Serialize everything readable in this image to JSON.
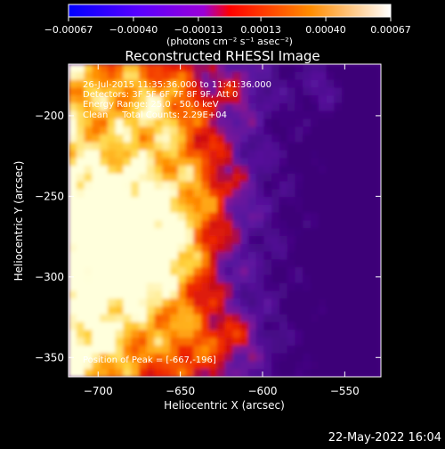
{
  "chart_data": {
    "type": "heatmap",
    "title": "Reconstructed RHESSI Image",
    "xlabel": "Heliocentric X (arcsec)",
    "ylabel": "Heliocentric Y (arcsec)",
    "xlim": [
      -718,
      -528
    ],
    "ylim": [
      -362,
      -168
    ],
    "x_ticks": [
      -700,
      -650,
      -600,
      -550
    ],
    "y_ticks": [
      -200,
      -250,
      -300,
      -350
    ],
    "x_tick_labels": [
      "−700",
      "−650",
      "−600",
      "−550"
    ],
    "y_tick_labels": [
      "−200",
      "−250",
      "−300",
      "−350"
    ],
    "colorbar": {
      "range": [
        -0.00067,
        0.00067
      ],
      "ticks": [
        -0.00067,
        -0.0004,
        -0.00013,
        0.00013,
        0.0004,
        0.00067
      ],
      "tick_labels": [
        "−0.00067",
        "−0.00040",
        "−0.00013",
        "0.00013",
        "0.00040",
        "0.00067"
      ],
      "unit_label": "(photons cm⁻² s⁻¹ asec⁻²)",
      "colors": [
        "#0000ff",
        "#5a00ff",
        "#9b00d8",
        "#ff0000",
        "#ff8c00",
        "#ffffff"
      ]
    },
    "annotations": {
      "time_range": "26-Jul-2015 11:35:36.000 to 11:41:36.000",
      "detectors": "Detectors: 3F 5F 6F 7F 8F 9F, Att 0",
      "energy": "Energy Range: 25.0 - 50.0 keV",
      "clean": "Clean     Total Counts: 2.29E+04",
      "peak": "Position of Peak = [-667,-196]"
    },
    "peak": [
      -667,
      -196
    ],
    "footer_date": "22-May-2022 16:04"
  }
}
